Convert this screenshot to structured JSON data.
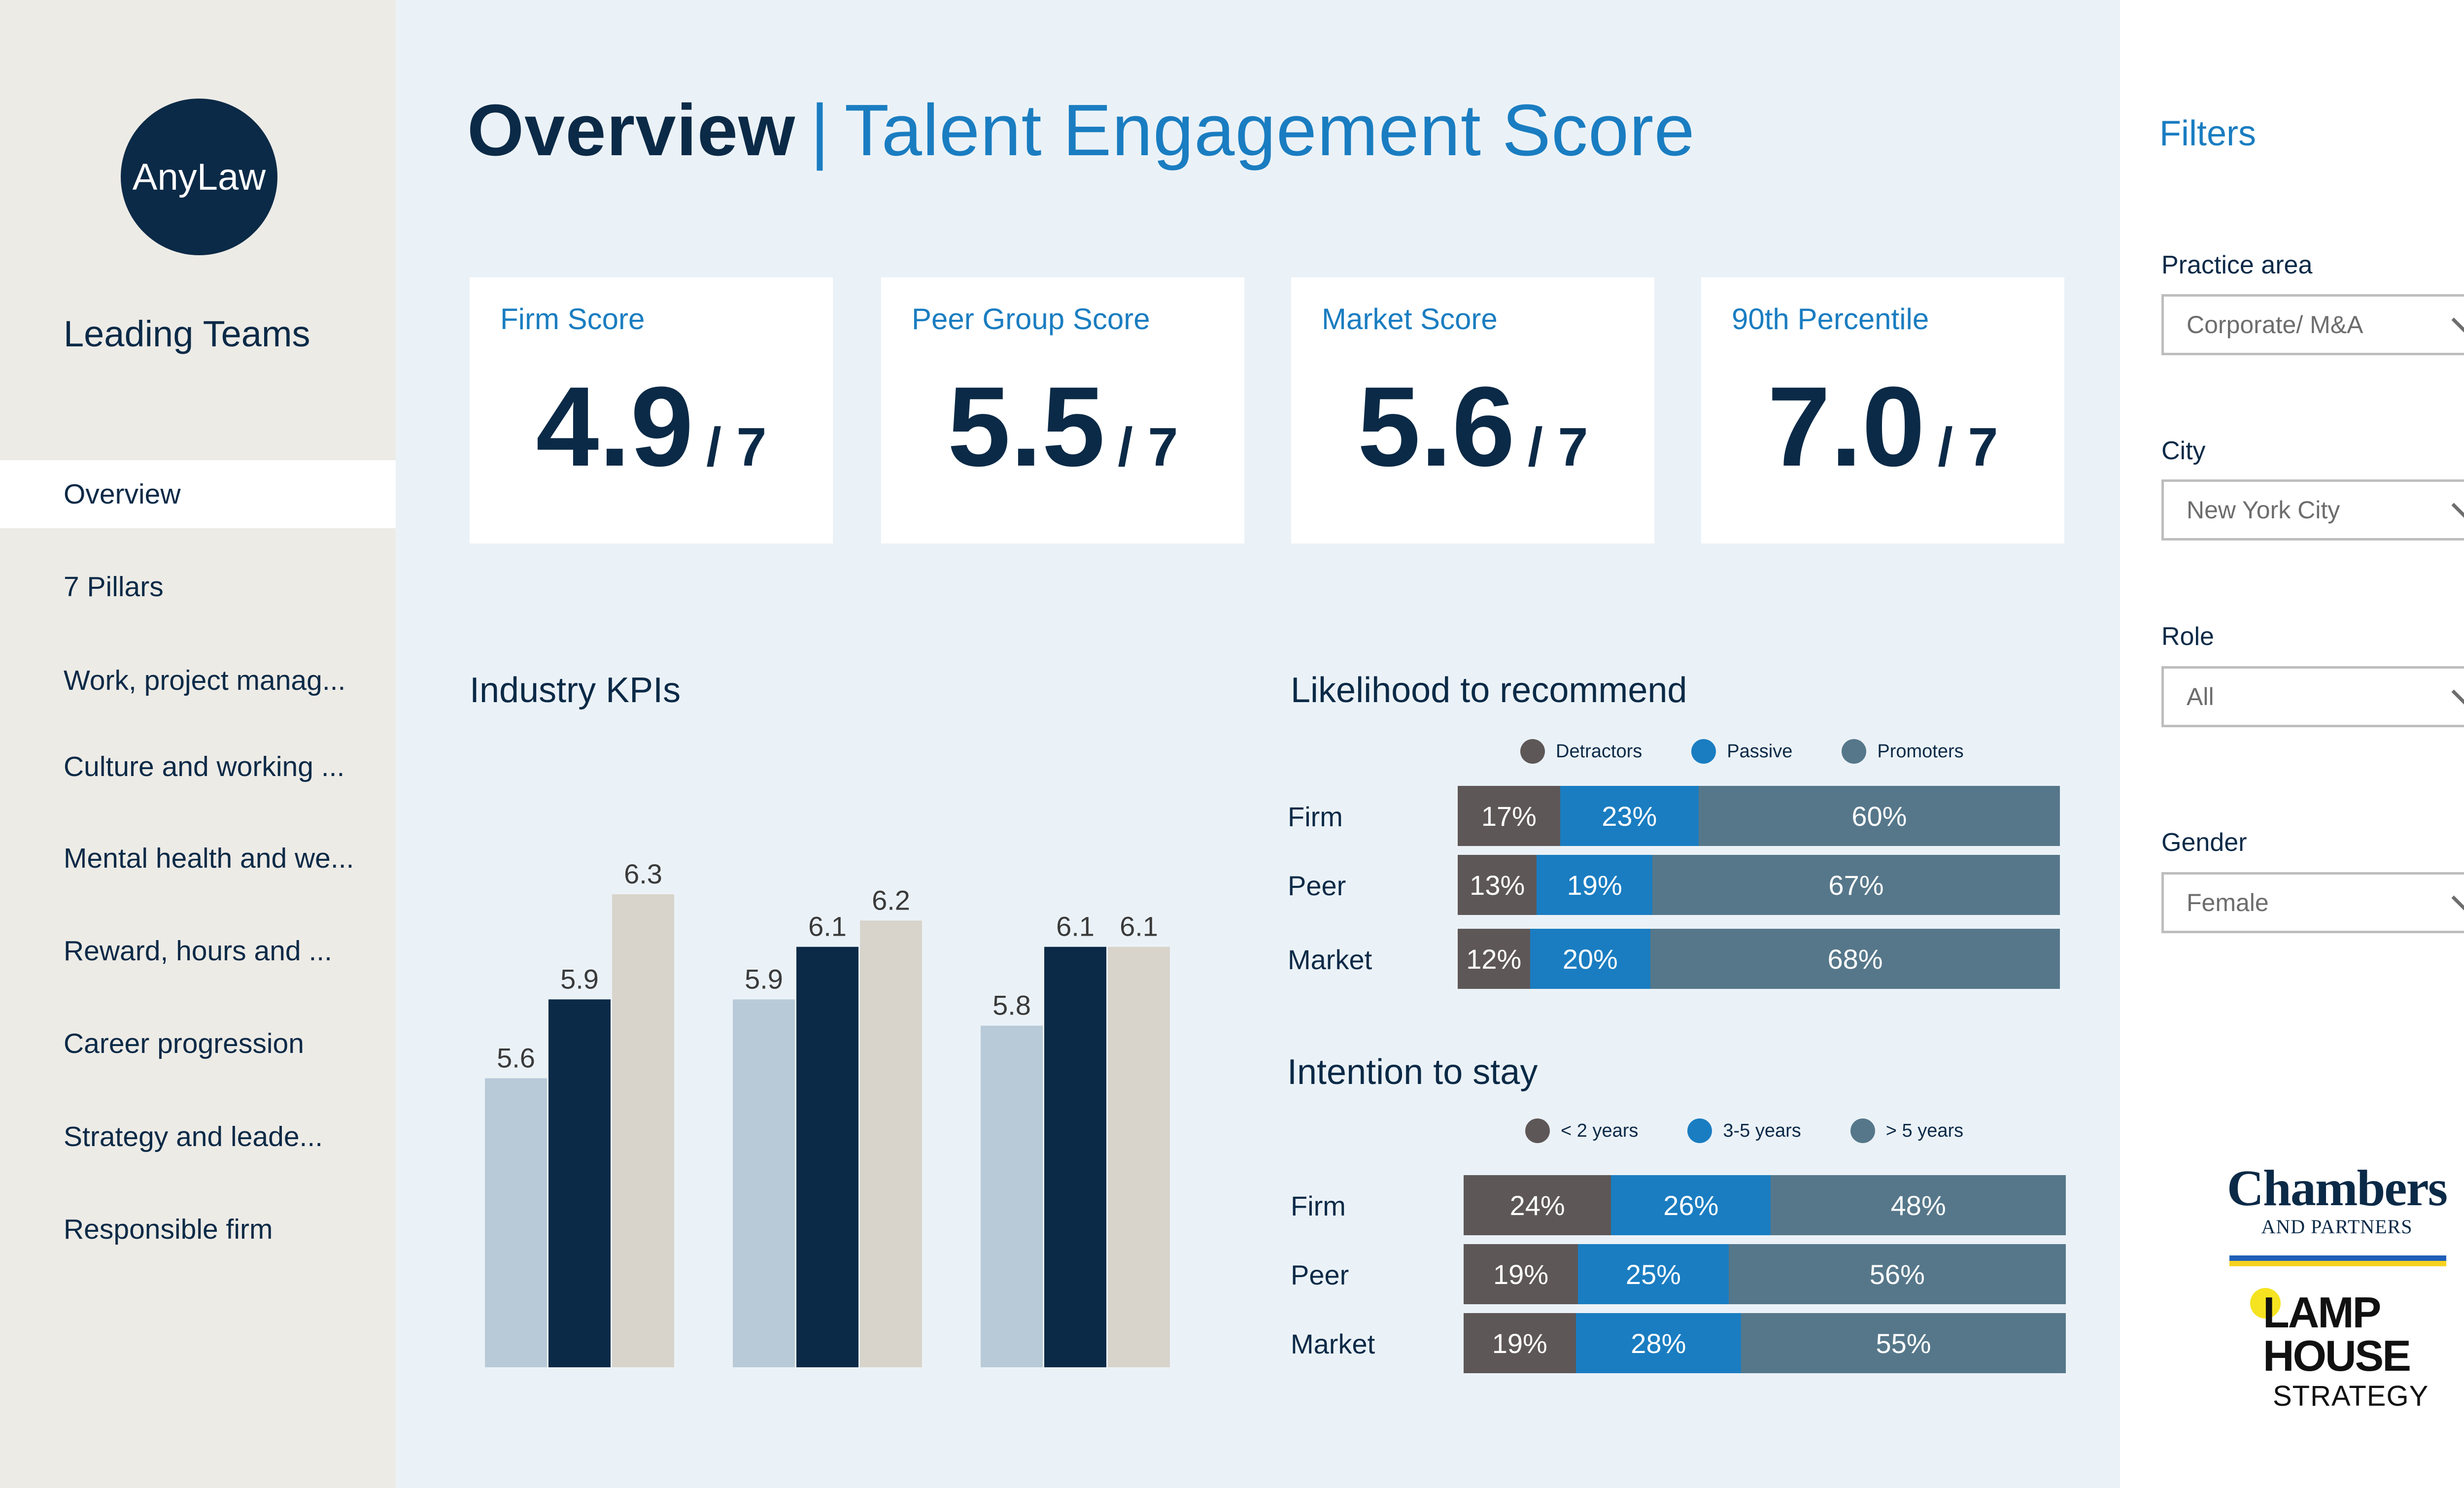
{
  "app": {
    "logo_text": "AnyLaw"
  },
  "sidebar": {
    "title": "Leading Teams",
    "items": [
      {
        "label": "Overview",
        "active": true
      },
      {
        "label": "7 Pillars",
        "active": false
      },
      {
        "label": "Work, project manag...",
        "active": false
      },
      {
        "label": "Culture and working ...",
        "active": false
      },
      {
        "label": "Mental health and we...",
        "active": false
      },
      {
        "label": "Reward, hours and ...",
        "active": false
      },
      {
        "label": "Career progression",
        "active": false
      },
      {
        "label": "Strategy and leade...",
        "active": false
      },
      {
        "label": "Responsible firm",
        "active": false
      }
    ]
  },
  "header": {
    "title": "Overview",
    "separator": "|",
    "subtitle": "Talent Engagement Score"
  },
  "score_cards": [
    {
      "label": "Firm Score",
      "value": "4.9",
      "denominator": "/ 7"
    },
    {
      "label": "Peer Group Score",
      "value": "5.5",
      "denominator": "/ 7"
    },
    {
      "label": "Market Score",
      "value": "5.6",
      "denominator": "/ 7"
    },
    {
      "label": "90th Percentile",
      "value": "7.0",
      "denominator": "/ 7"
    }
  ],
  "colors": {
    "navy": "#0b2a47",
    "accent_blue": "#1a7dc1",
    "light_blue_bar": "#b8cad8",
    "beige_bar": "#d8d4cb",
    "detractor": "#5e5757",
    "passive": "#1a7dc1",
    "promoter": "#56778a"
  },
  "chart_data": [
    {
      "type": "bar",
      "title": "Industry KPIs",
      "categories": [
        "",
        "",
        ""
      ],
      "series": [
        {
          "values": [
            5.6,
            5.9,
            5.8
          ],
          "color": "#b8cad8"
        },
        {
          "values": [
            5.9,
            6.1,
            6.1
          ],
          "color": "#0b2a47"
        },
        {
          "values": [
            6.3,
            6.2,
            6.1
          ],
          "color": "#d8d4cb"
        }
      ],
      "value_labels": [
        [
          "5.6",
          "5.9",
          "6.3"
        ],
        [
          "5.9",
          "6.1",
          "6.2"
        ],
        [
          "5.8",
          "6.1",
          "6.1"
        ]
      ],
      "ylim": [
        4.5,
        6.6
      ],
      "grid": false,
      "xlabel": "",
      "ylabel": ""
    },
    {
      "type": "bar",
      "stacked": true,
      "orientation": "horizontal",
      "title": "Likelihood to recommend",
      "categories": [
        "Firm",
        "Peer",
        "Market"
      ],
      "series": [
        {
          "name": "Detractors",
          "values": [
            17,
            13,
            12
          ],
          "labels": [
            "17%",
            "13%",
            "12%"
          ],
          "color": "#5e5757"
        },
        {
          "name": "Passive",
          "values": [
            23,
            19,
            20
          ],
          "labels": [
            "23%",
            "19%",
            "20%"
          ],
          "color": "#1a7dc1"
        },
        {
          "name": "Promoters",
          "values": [
            60,
            67,
            68
          ],
          "labels": [
            "60%",
            "67%",
            "68%"
          ],
          "color": "#56778a"
        }
      ],
      "legend": "top"
    },
    {
      "type": "bar",
      "stacked": true,
      "orientation": "horizontal",
      "title": "Intention to stay",
      "categories": [
        "Firm",
        "Peer",
        "Market"
      ],
      "series": [
        {
          "name": "< 2 years",
          "values": [
            24,
            19,
            19
          ],
          "labels": [
            "24%",
            "19%",
            "19%"
          ],
          "color": "#5e5757"
        },
        {
          "name": "3-5 years",
          "values": [
            26,
            25,
            28
          ],
          "labels": [
            "26%",
            "25%",
            "28%"
          ],
          "color": "#1a7dc1"
        },
        {
          "name": "> 5 years",
          "values": [
            48,
            56,
            55
          ],
          "labels": [
            "48%",
            "56%",
            "55%"
          ],
          "color": "#56778a"
        }
      ],
      "legend": "top"
    }
  ],
  "filters": {
    "title": "Filters",
    "fields": [
      {
        "label": "Practice area",
        "value": "Corporate/ M&A"
      },
      {
        "label": "City",
        "value": "New York City"
      },
      {
        "label": "Role",
        "value": "All"
      },
      {
        "label": "Gender",
        "value": "Female"
      }
    ]
  },
  "partner_logos": {
    "chambers_name": "Chambers",
    "chambers_sub": "AND PARTNERS",
    "lamp_name": "LAMP HOUSE",
    "lamp_sub": "STRATEGY"
  }
}
